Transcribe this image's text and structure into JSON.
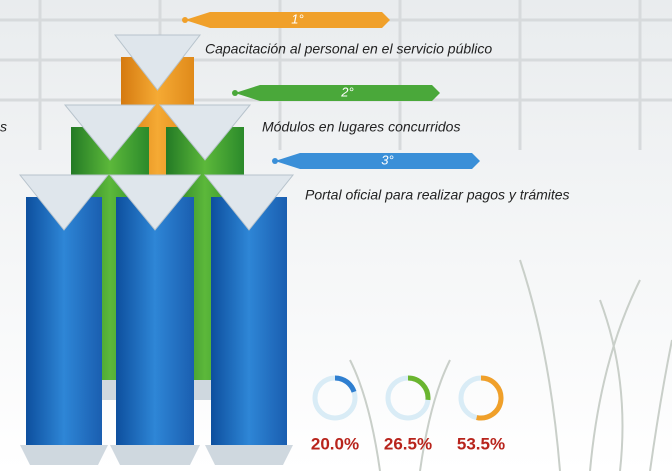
{
  "fragment": "s",
  "ranks": [
    {
      "label": "1°",
      "text": "Capacitación al personal en el servicio público",
      "color": "#f0a02a"
    },
    {
      "label": "2°",
      "text": "Módulos en lugares concurridos",
      "color": "#4aa83a"
    },
    {
      "label": "3°",
      "text": "Portal oficial para realizar pagos y trámites",
      "color": "#3a8fd8"
    }
  ],
  "donuts": {
    "values": [
      20.0,
      26.5,
      53.5
    ],
    "value_labels": [
      "20.0%",
      "26.5%",
      "53.5%"
    ],
    "colors": [
      "#2f7fd0",
      "#6ab52f",
      "#f0a02a"
    ]
  }
}
